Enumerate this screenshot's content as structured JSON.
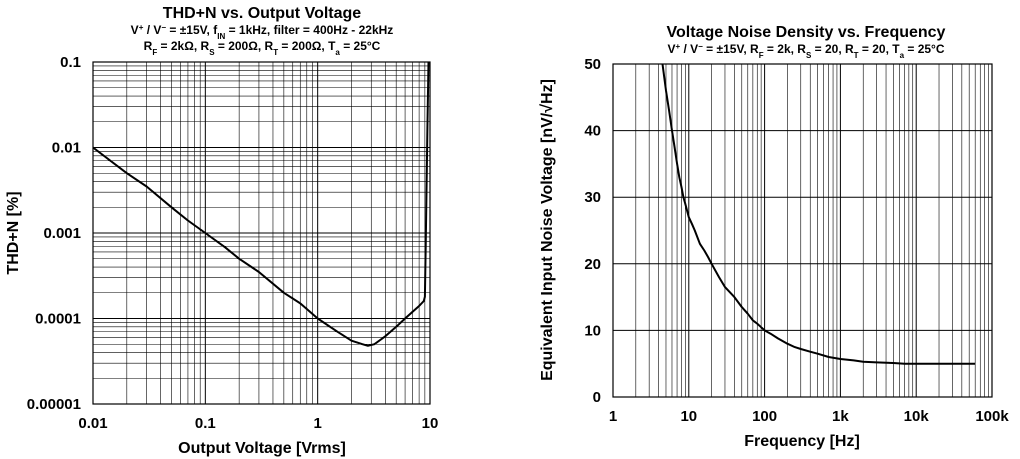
{
  "chart_data": [
    {
      "type": "line",
      "title": "THD+N vs. Output Voltage",
      "subtitle_line1": [
        "V",
        "+",
        " / V",
        "−",
        " = ±15V, f",
        "IN",
        " = 1kHz, filter = 400Hz - 22kHz"
      ],
      "subtitle_line2": [
        "R",
        "F",
        " = 2kΩ, R",
        "S",
        " = 200Ω, R",
        "T",
        " = 200Ω, T",
        "a",
        " = 25°C"
      ],
      "xlabel": "Output Voltage [Vrms]",
      "ylabel": "THD+N [%]",
      "xscale": "log",
      "yscale": "log",
      "xlim": [
        0.01,
        10.0
      ],
      "ylim": [
        1e-05,
        0.1
      ],
      "xticks": [
        0.01,
        0.1,
        1,
        10
      ],
      "xtick_labels": [
        "0.01",
        "0.1",
        "1",
        "10"
      ],
      "yticks": [
        1e-05,
        0.0001,
        0.001,
        0.01,
        0.1
      ],
      "ytick_labels": [
        "0.00001",
        "0.0001",
        "0.001",
        "0.01",
        "0.1"
      ],
      "grid": true,
      "series": [
        {
          "x": [
            0.01,
            0.02,
            0.03,
            0.05,
            0.07,
            0.1,
            0.15,
            0.2,
            0.3,
            0.5,
            0.7,
            1.0,
            1.5,
            2.0,
            2.5,
            2.8,
            3.2,
            4.0,
            5.0,
            6.0,
            7.0,
            8.0,
            8.8,
            9.0,
            9.2,
            9.5,
            9.7
          ],
          "y": [
            0.01,
            0.005,
            0.0035,
            0.002,
            0.0014,
            0.001,
            0.00068,
            0.0005,
            0.00035,
            0.0002,
            0.00015,
            0.0001,
            7e-05,
            5.5e-05,
            5e-05,
            4.8e-05,
            5e-05,
            6.2e-05,
            8e-05,
            0.0001,
            0.00012,
            0.00014,
            0.00016,
            0.00018,
            0.001,
            0.02,
            0.1
          ]
        }
      ]
    },
    {
      "type": "line",
      "title": "Voltage Noise Density vs. Frequency",
      "subtitle_line1": [
        "V",
        "+",
        " / V",
        "−",
        " = ±15V, R",
        "F",
        " = 2k, R",
        "S",
        " = 20, R",
        "T",
        " = 20, T",
        "a",
        " = 25°C"
      ],
      "xlabel": "Frequency [Hz]",
      "ylabel": "Equivalent Input Noise Voltage [nV/√Hz]",
      "xscale": "log",
      "yscale": "linear",
      "xlim": [
        1,
        100000
      ],
      "ylim": [
        0,
        50
      ],
      "xticks": [
        1,
        10,
        100,
        1000,
        10000,
        100000
      ],
      "xtick_labels": [
        "1",
        "10",
        "100",
        "1k",
        "10k",
        "100k"
      ],
      "yticks": [
        0,
        10,
        20,
        30,
        40,
        50
      ],
      "ytick_labels": [
        "0",
        "10",
        "20",
        "30",
        "40",
        "50"
      ],
      "grid": true,
      "series": [
        {
          "x": [
            4.5,
            5,
            5.5,
            6,
            6.5,
            7,
            7.5,
            8,
            8.5,
            9,
            10,
            11,
            12,
            14,
            16,
            18,
            20,
            25,
            30,
            40,
            50,
            60,
            70,
            80,
            100,
            120,
            150,
            200,
            250,
            300,
            400,
            500,
            700,
            1000,
            1500,
            2000,
            3000,
            5000,
            7000,
            10000,
            20000,
            40000,
            60000
          ],
          "y": [
            50,
            46,
            43,
            40,
            37.5,
            35,
            33,
            31.5,
            30,
            29,
            27,
            26,
            25,
            23,
            22,
            21,
            20,
            18,
            16.5,
            15,
            13.5,
            12.5,
            11.5,
            11,
            10,
            9.5,
            8.8,
            8,
            7.5,
            7.2,
            6.8,
            6.5,
            6,
            5.7,
            5.5,
            5.3,
            5.2,
            5.1,
            5.0,
            5.0,
            5.0,
            5.0,
            5.0
          ]
        }
      ]
    }
  ]
}
